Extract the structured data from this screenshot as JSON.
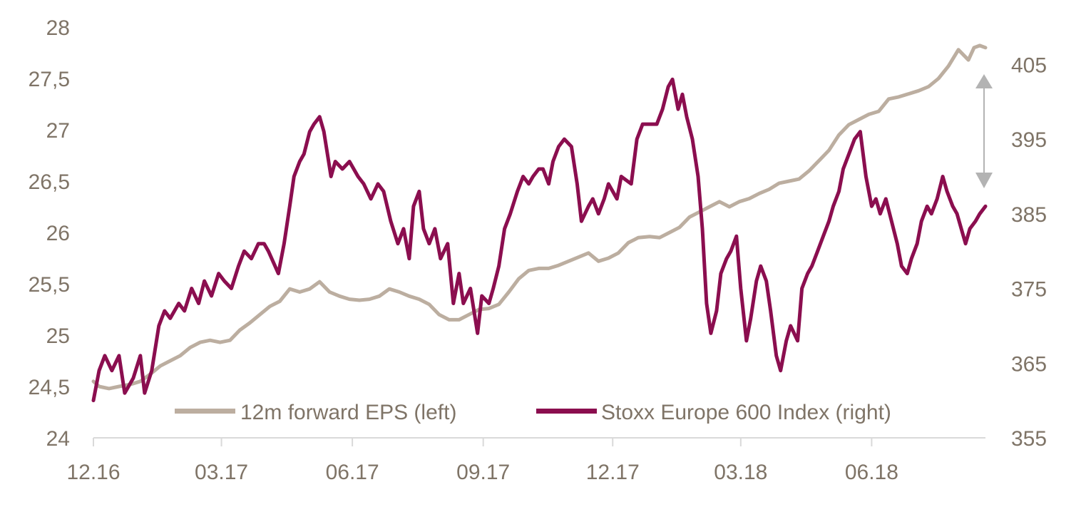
{
  "chart_data": {
    "type": "line",
    "title": "",
    "xlabel": "",
    "ylabel_left": "",
    "ylabel_right": "",
    "x_range": [
      "2016-12-01",
      "2018-08-20"
    ],
    "x_ticks": [
      {
        "date": "2016-12-01",
        "label": "12.16"
      },
      {
        "date": "2017-03-01",
        "label": "03.17"
      },
      {
        "date": "2017-06-01",
        "label": "06.17"
      },
      {
        "date": "2017-09-01",
        "label": "09.17"
      },
      {
        "date": "2017-12-01",
        "label": "12.17"
      },
      {
        "date": "2018-03-01",
        "label": "03.18"
      },
      {
        "date": "2018-06-01",
        "label": "06.18"
      }
    ],
    "y_left": {
      "min": 24,
      "max": 28,
      "ticks": [
        "24",
        "24,5",
        "25",
        "25,5",
        "26",
        "26,5",
        "27",
        "27,5",
        "28"
      ]
    },
    "y_right": {
      "min": 355,
      "max": 410,
      "ticks": [
        "355",
        "365",
        "375",
        "385",
        "395",
        "405"
      ]
    },
    "grid": false,
    "legend": {
      "placement": "bottom-center"
    },
    "annotation": "double-headed arrow at right marking gap between EPS and index",
    "series": [
      {
        "name": "12m forward EPS (left)",
        "axis": "left",
        "color": "#bcaea0",
        "points": [
          [
            "2016-12-01",
            24.55
          ],
          [
            "2016-12-05",
            24.5
          ],
          [
            "2016-12-12",
            24.48
          ],
          [
            "2016-12-19",
            24.5
          ],
          [
            "2016-12-27",
            24.52
          ],
          [
            "2017-01-03",
            24.55
          ],
          [
            "2017-01-10",
            24.62
          ],
          [
            "2017-01-17",
            24.7
          ],
          [
            "2017-01-24",
            24.75
          ],
          [
            "2017-01-31",
            24.8
          ],
          [
            "2017-02-07",
            24.88
          ],
          [
            "2017-02-14",
            24.93
          ],
          [
            "2017-02-21",
            24.95
          ],
          [
            "2017-02-28",
            24.93
          ],
          [
            "2017-03-07",
            24.95
          ],
          [
            "2017-03-14",
            25.05
          ],
          [
            "2017-03-21",
            25.12
          ],
          [
            "2017-03-28",
            25.2
          ],
          [
            "2017-04-04",
            25.28
          ],
          [
            "2017-04-11",
            25.33
          ],
          [
            "2017-04-18",
            25.45
          ],
          [
            "2017-04-25",
            25.42
          ],
          [
            "2017-05-02",
            25.45
          ],
          [
            "2017-05-09",
            25.52
          ],
          [
            "2017-05-16",
            25.42
          ],
          [
            "2017-05-23",
            25.38
          ],
          [
            "2017-05-30",
            25.35
          ],
          [
            "2017-06-06",
            25.34
          ],
          [
            "2017-06-13",
            25.35
          ],
          [
            "2017-06-20",
            25.38
          ],
          [
            "2017-06-27",
            25.45
          ],
          [
            "2017-07-04",
            25.42
          ],
          [
            "2017-07-11",
            25.38
          ],
          [
            "2017-07-18",
            25.35
          ],
          [
            "2017-07-25",
            25.3
          ],
          [
            "2017-08-01",
            25.2
          ],
          [
            "2017-08-08",
            25.15
          ],
          [
            "2017-08-15",
            25.15
          ],
          [
            "2017-08-22",
            25.2
          ],
          [
            "2017-08-29",
            25.25
          ],
          [
            "2017-09-05",
            25.26
          ],
          [
            "2017-09-12",
            25.3
          ],
          [
            "2017-09-19",
            25.42
          ],
          [
            "2017-09-26",
            25.55
          ],
          [
            "2017-10-03",
            25.63
          ],
          [
            "2017-10-10",
            25.65
          ],
          [
            "2017-10-17",
            25.65
          ],
          [
            "2017-10-24",
            25.68
          ],
          [
            "2017-10-31",
            25.72
          ],
          [
            "2017-11-07",
            25.76
          ],
          [
            "2017-11-14",
            25.8
          ],
          [
            "2017-11-21",
            25.72
          ],
          [
            "2017-11-28",
            25.75
          ],
          [
            "2017-12-05",
            25.8
          ],
          [
            "2017-12-12",
            25.9
          ],
          [
            "2017-12-19",
            25.95
          ],
          [
            "2017-12-27",
            25.96
          ],
          [
            "2018-01-03",
            25.95
          ],
          [
            "2018-01-10",
            26.0
          ],
          [
            "2018-01-17",
            26.05
          ],
          [
            "2018-01-24",
            26.15
          ],
          [
            "2018-01-31",
            26.2
          ],
          [
            "2018-02-07",
            26.25
          ],
          [
            "2018-02-14",
            26.3
          ],
          [
            "2018-02-21",
            26.25
          ],
          [
            "2018-02-28",
            26.3
          ],
          [
            "2018-03-07",
            26.33
          ],
          [
            "2018-03-14",
            26.38
          ],
          [
            "2018-03-21",
            26.42
          ],
          [
            "2018-03-28",
            26.48
          ],
          [
            "2018-04-04",
            26.5
          ],
          [
            "2018-04-11",
            26.52
          ],
          [
            "2018-04-18",
            26.6
          ],
          [
            "2018-04-25",
            26.7
          ],
          [
            "2018-05-02",
            26.8
          ],
          [
            "2018-05-09",
            26.95
          ],
          [
            "2018-05-16",
            27.05
          ],
          [
            "2018-05-23",
            27.1
          ],
          [
            "2018-05-30",
            27.15
          ],
          [
            "2018-06-06",
            27.18
          ],
          [
            "2018-06-13",
            27.3
          ],
          [
            "2018-06-20",
            27.32
          ],
          [
            "2018-06-27",
            27.35
          ],
          [
            "2018-07-04",
            27.38
          ],
          [
            "2018-07-11",
            27.42
          ],
          [
            "2018-07-18",
            27.5
          ],
          [
            "2018-07-25",
            27.62
          ],
          [
            "2018-08-01",
            27.78
          ],
          [
            "2018-08-08",
            27.68
          ],
          [
            "2018-08-12",
            27.8
          ],
          [
            "2018-08-16",
            27.82
          ],
          [
            "2018-08-20",
            27.8
          ]
        ]
      },
      {
        "name": "Stoxx Europe 600 Index (right)",
        "axis": "right",
        "color": "#8b0e4f",
        "points": [
          [
            "2016-12-01",
            360
          ],
          [
            "2016-12-05",
            364
          ],
          [
            "2016-12-09",
            366
          ],
          [
            "2016-12-14",
            364
          ],
          [
            "2016-12-19",
            366
          ],
          [
            "2016-12-23",
            361
          ],
          [
            "2016-12-29",
            363
          ],
          [
            "2017-01-03",
            366
          ],
          [
            "2017-01-06",
            361
          ],
          [
            "2017-01-11",
            364
          ],
          [
            "2017-01-16",
            370
          ],
          [
            "2017-01-20",
            372
          ],
          [
            "2017-01-24",
            371
          ],
          [
            "2017-01-30",
            373
          ],
          [
            "2017-02-03",
            372
          ],
          [
            "2017-02-08",
            375
          ],
          [
            "2017-02-13",
            373
          ],
          [
            "2017-02-17",
            376
          ],
          [
            "2017-02-22",
            374
          ],
          [
            "2017-02-27",
            377
          ],
          [
            "2017-03-03",
            376
          ],
          [
            "2017-03-08",
            375
          ],
          [
            "2017-03-13",
            378
          ],
          [
            "2017-03-17",
            380
          ],
          [
            "2017-03-22",
            379
          ],
          [
            "2017-03-27",
            381
          ],
          [
            "2017-03-31",
            381
          ],
          [
            "2017-04-03",
            380
          ],
          [
            "2017-04-10",
            377
          ],
          [
            "2017-04-14",
            381
          ],
          [
            "2017-04-18",
            386
          ],
          [
            "2017-04-21",
            390
          ],
          [
            "2017-04-25",
            392
          ],
          [
            "2017-04-28",
            393
          ],
          [
            "2017-05-02",
            396
          ],
          [
            "2017-05-05",
            397
          ],
          [
            "2017-05-09",
            398
          ],
          [
            "2017-05-12",
            396
          ],
          [
            "2017-05-17",
            390
          ],
          [
            "2017-05-20",
            392
          ],
          [
            "2017-05-25",
            391
          ],
          [
            "2017-05-30",
            392
          ],
          [
            "2017-06-05",
            390
          ],
          [
            "2017-06-09",
            389
          ],
          [
            "2017-06-14",
            387
          ],
          [
            "2017-06-19",
            389
          ],
          [
            "2017-06-23",
            388
          ],
          [
            "2017-06-28",
            384
          ],
          [
            "2017-07-03",
            381
          ],
          [
            "2017-07-07",
            383
          ],
          [
            "2017-07-11",
            379
          ],
          [
            "2017-07-14",
            386
          ],
          [
            "2017-07-18",
            388
          ],
          [
            "2017-07-21",
            383
          ],
          [
            "2017-07-25",
            381
          ],
          [
            "2017-07-29",
            383
          ],
          [
            "2017-08-02",
            379
          ],
          [
            "2017-08-07",
            381
          ],
          [
            "2017-08-11",
            373
          ],
          [
            "2017-08-15",
            377
          ],
          [
            "2017-08-18",
            373
          ],
          [
            "2017-08-23",
            375
          ],
          [
            "2017-08-28",
            369
          ],
          [
            "2017-08-31",
            374
          ],
          [
            "2017-09-05",
            373
          ],
          [
            "2017-09-08",
            375
          ],
          [
            "2017-09-12",
            378
          ],
          [
            "2017-09-16",
            383
          ],
          [
            "2017-09-20",
            385
          ],
          [
            "2017-09-25",
            388
          ],
          [
            "2017-09-29",
            390
          ],
          [
            "2017-10-03",
            389
          ],
          [
            "2017-10-06",
            390
          ],
          [
            "2017-10-10",
            391
          ],
          [
            "2017-10-13",
            391
          ],
          [
            "2017-10-17",
            389
          ],
          [
            "2017-10-20",
            392
          ],
          [
            "2017-10-24",
            394
          ],
          [
            "2017-10-28",
            395
          ],
          [
            "2017-11-02",
            394
          ],
          [
            "2017-11-06",
            389
          ],
          [
            "2017-11-09",
            384
          ],
          [
            "2017-11-14",
            386
          ],
          [
            "2017-11-17",
            387
          ],
          [
            "2017-11-21",
            385
          ],
          [
            "2017-11-25",
            387
          ],
          [
            "2017-11-28",
            389
          ],
          [
            "2017-12-01",
            388
          ],
          [
            "2017-12-04",
            387
          ],
          [
            "2017-12-07",
            390
          ],
          [
            "2017-12-14",
            389
          ],
          [
            "2017-12-18",
            395
          ],
          [
            "2017-12-22",
            397
          ],
          [
            "2018-01-01",
            397
          ],
          [
            "2018-01-05",
            399
          ],
          [
            "2018-01-09",
            402
          ],
          [
            "2018-01-12",
            403
          ],
          [
            "2018-01-16",
            399
          ],
          [
            "2018-01-19",
            401
          ],
          [
            "2018-01-22",
            398
          ],
          [
            "2018-01-26",
            395
          ],
          [
            "2018-01-30",
            390
          ],
          [
            "2018-02-02",
            383
          ],
          [
            "2018-02-05",
            373
          ],
          [
            "2018-02-08",
            369
          ],
          [
            "2018-02-12",
            372
          ],
          [
            "2018-02-15",
            377
          ],
          [
            "2018-02-19",
            379
          ],
          [
            "2018-02-22",
            380
          ],
          [
            "2018-02-26",
            382
          ],
          [
            "2018-03-01",
            375
          ],
          [
            "2018-03-05",
            368
          ],
          [
            "2018-03-08",
            371
          ],
          [
            "2018-03-12",
            376
          ],
          [
            "2018-03-15",
            378
          ],
          [
            "2018-03-19",
            376
          ],
          [
            "2018-03-22",
            372
          ],
          [
            "2018-03-26",
            366
          ],
          [
            "2018-03-29",
            364
          ],
          [
            "2018-04-02",
            368
          ],
          [
            "2018-04-05",
            370
          ],
          [
            "2018-04-10",
            368
          ],
          [
            "2018-04-13",
            375
          ],
          [
            "2018-04-17",
            377
          ],
          [
            "2018-04-20",
            378
          ],
          [
            "2018-04-24",
            380
          ],
          [
            "2018-04-28",
            382
          ],
          [
            "2018-05-02",
            384
          ],
          [
            "2018-05-05",
            386
          ],
          [
            "2018-05-09",
            388
          ],
          [
            "2018-05-12",
            391
          ],
          [
            "2018-05-16",
            393
          ],
          [
            "2018-05-20",
            395
          ],
          [
            "2018-05-24",
            396
          ],
          [
            "2018-05-28",
            390
          ],
          [
            "2018-06-01",
            386
          ],
          [
            "2018-06-04",
            387
          ],
          [
            "2018-06-07",
            385
          ],
          [
            "2018-06-11",
            387
          ],
          [
            "2018-06-15",
            384
          ],
          [
            "2018-06-19",
            381
          ],
          [
            "2018-06-22",
            378
          ],
          [
            "2018-06-26",
            377
          ],
          [
            "2018-06-29",
            379
          ],
          [
            "2018-07-03",
            381
          ],
          [
            "2018-07-06",
            384
          ],
          [
            "2018-07-10",
            386
          ],
          [
            "2018-07-13",
            385
          ],
          [
            "2018-07-17",
            387
          ],
          [
            "2018-07-21",
            390
          ],
          [
            "2018-07-24",
            388
          ],
          [
            "2018-07-28",
            386
          ],
          [
            "2018-07-31",
            385
          ],
          [
            "2018-08-03",
            383
          ],
          [
            "2018-08-06",
            381
          ],
          [
            "2018-08-09",
            383
          ],
          [
            "2018-08-13",
            384
          ],
          [
            "2018-08-16",
            385
          ],
          [
            "2018-08-20",
            386
          ]
        ]
      }
    ]
  }
}
